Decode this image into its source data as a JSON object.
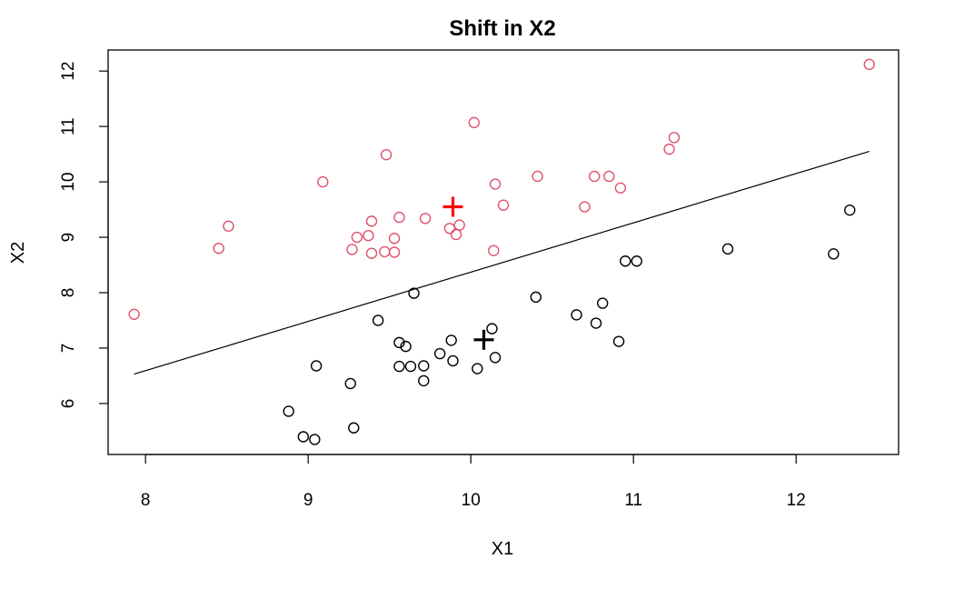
{
  "chart_data": {
    "type": "scatter",
    "title": "Shift in X2",
    "xlabel": "X1",
    "ylabel": "X2",
    "xlim": [
      7.77,
      12.63
    ],
    "ylim": [
      5.08,
      12.38
    ],
    "x_ticks": [
      8,
      9,
      10,
      11,
      12
    ],
    "y_ticks": [
      6,
      7,
      8,
      9,
      10,
      11,
      12
    ],
    "grid": false,
    "legend": "none",
    "series": [
      {
        "marker": "open-circle",
        "color": "#000000",
        "points": [
          [
            8.88,
            5.86
          ],
          [
            8.97,
            5.4
          ],
          [
            9.04,
            5.35
          ],
          [
            9.05,
            6.68
          ],
          [
            9.26,
            6.36
          ],
          [
            9.28,
            5.56
          ],
          [
            9.43,
            7.5
          ],
          [
            9.56,
            7.1
          ],
          [
            9.56,
            6.67
          ],
          [
            9.6,
            7.03
          ],
          [
            9.63,
            6.67
          ],
          [
            9.65,
            7.99
          ],
          [
            9.71,
            6.68
          ],
          [
            9.71,
            6.41
          ],
          [
            9.81,
            6.9
          ],
          [
            9.88,
            7.14
          ],
          [
            9.89,
            6.77
          ],
          [
            10.04,
            6.63
          ],
          [
            10.13,
            7.35
          ],
          [
            10.15,
            6.83
          ],
          [
            10.4,
            7.92
          ],
          [
            10.65,
            7.6
          ],
          [
            10.77,
            7.45
          ],
          [
            10.81,
            7.81
          ],
          [
            10.91,
            7.12
          ],
          [
            10.95,
            8.57
          ],
          [
            11.02,
            8.57
          ],
          [
            11.58,
            8.79
          ],
          [
            12.23,
            8.7
          ],
          [
            12.33,
            9.49
          ]
        ],
        "mean": [
          10.08,
          7.15
        ]
      },
      {
        "marker": "open-circle",
        "color": "#DF536B",
        "points": [
          [
            7.93,
            7.61
          ],
          [
            8.45,
            8.8
          ],
          [
            8.51,
            9.2
          ],
          [
            9.09,
            10.0
          ],
          [
            9.27,
            8.78
          ],
          [
            9.3,
            9.0
          ],
          [
            9.37,
            9.03
          ],
          [
            9.39,
            9.29
          ],
          [
            9.39,
            8.71
          ],
          [
            9.47,
            8.74
          ],
          [
            9.48,
            10.49
          ],
          [
            9.53,
            8.98
          ],
          [
            9.53,
            8.73
          ],
          [
            9.56,
            9.36
          ],
          [
            9.72,
            9.34
          ],
          [
            9.87,
            9.16
          ],
          [
            9.91,
            9.05
          ],
          [
            9.93,
            9.22
          ],
          [
            10.02,
            11.07
          ],
          [
            10.14,
            8.76
          ],
          [
            10.15,
            9.96
          ],
          [
            10.2,
            9.58
          ],
          [
            10.41,
            10.1
          ],
          [
            10.7,
            9.55
          ],
          [
            10.76,
            10.1
          ],
          [
            10.85,
            10.1
          ],
          [
            10.92,
            9.89
          ],
          [
            11.22,
            10.59
          ],
          [
            11.25,
            10.8
          ],
          [
            12.45,
            12.12
          ]
        ],
        "mean": [
          9.89,
          9.55
        ],
        "mean_color": "#FF0000"
      }
    ],
    "boundary_line": {
      "from": [
        7.93,
        6.53
      ],
      "to": [
        12.45,
        10.55
      ],
      "color": "#000000"
    }
  }
}
